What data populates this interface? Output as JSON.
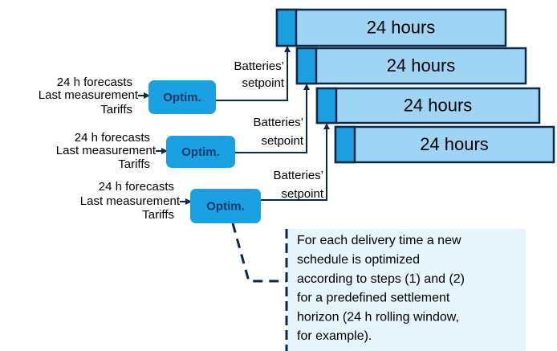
{
  "timeline_bars": [
    {
      "label": "24 hours"
    },
    {
      "label": "24 hours"
    },
    {
      "label": "24 hours"
    },
    {
      "label": "24 hours"
    }
  ],
  "optimizers": [
    {
      "label": "Optim.",
      "inputs": [
        "24 h forecasts",
        "Last measurement",
        "Tariffs"
      ],
      "output": [
        "Batteries’",
        "setpoint"
      ]
    },
    {
      "label": "Optim.",
      "inputs": [
        "24 h forecasts",
        "Last measurement",
        "Tariffs"
      ],
      "output": [
        "Batteries’",
        "setpoint"
      ]
    },
    {
      "label": "Optim.",
      "inputs": [
        "24 h forecasts",
        "Last measurement",
        "Tariffs"
      ],
      "output": [
        "Batteries’",
        "setpoint"
      ]
    }
  ],
  "note": {
    "lines": [
      "For each delivery time a new",
      "schedule is optimized",
      "according to steps (1) and (2)",
      "for a predefined settlement",
      "horizon (24 h rolling window,",
      "for example)."
    ]
  }
}
